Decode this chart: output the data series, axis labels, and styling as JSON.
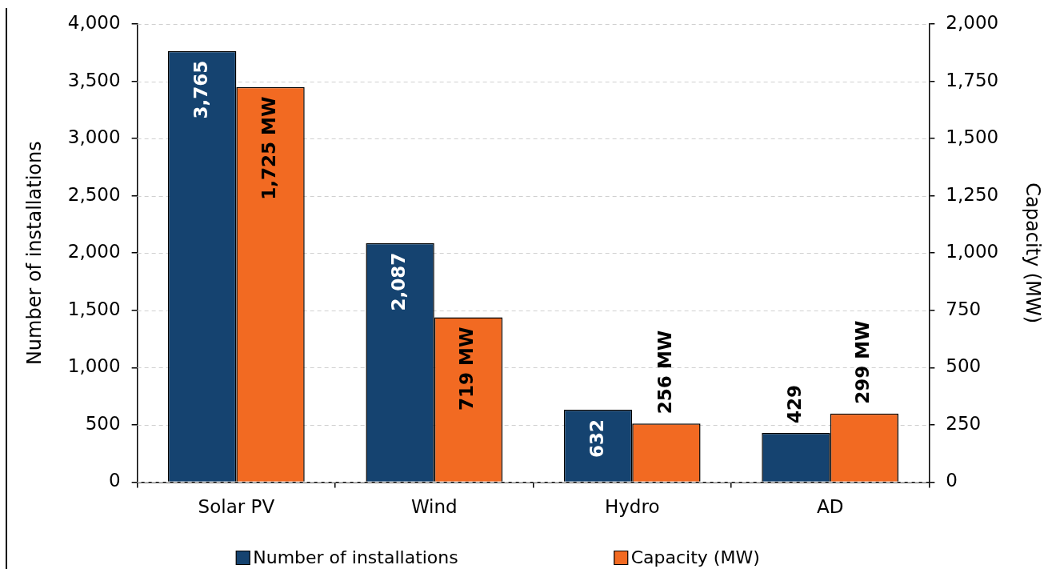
{
  "chart_data": {
    "type": "bar",
    "categories": [
      "Solar PV",
      "Wind",
      "Hydro",
      "AD"
    ],
    "series": [
      {
        "name": "Number of installations",
        "color": "#154370",
        "values": [
          3765,
          2087,
          632,
          429
        ],
        "value_labels": [
          "3,765",
          "2,087",
          "632",
          "429"
        ]
      },
      {
        "name": "Capacity (MW)",
        "color": "#f26a22",
        "values": [
          1725,
          719,
          256,
          299
        ],
        "axis": "y2",
        "value_labels": [
          "1,725 MW",
          "719 MW",
          "256 MW",
          "299 MW"
        ]
      }
    ],
    "ylabel": "Number of installations",
    "y2label": "Capacity (MW)",
    "ylim": [
      0,
      4000
    ],
    "yticks": [
      0,
      500,
      {
        "value": 1000,
        "label": "1,000"
      },
      {
        "value": 1500,
        "label": "1,500"
      },
      {
        "value": 2000,
        "label": "2,000"
      },
      {
        "value": 2500,
        "label": "2,500"
      },
      {
        "value": 3000,
        "label": "3,000"
      },
      {
        "value": 3500,
        "label": "3,500"
      },
      {
        "value": 4000,
        "label": "4,000"
      }
    ],
    "y2lim": [
      0,
      2000
    ],
    "y2ticks": [
      0,
      250,
      500,
      750,
      {
        "value": 1000,
        "label": "1,000"
      },
      {
        "value": 1250,
        "label": "1,250"
      },
      {
        "value": 1500,
        "label": "1,500"
      },
      {
        "value": 1750,
        "label": "1,750"
      },
      {
        "value": 2000,
        "label": "2,000"
      }
    ],
    "grid": "y",
    "legend": "bottom"
  }
}
